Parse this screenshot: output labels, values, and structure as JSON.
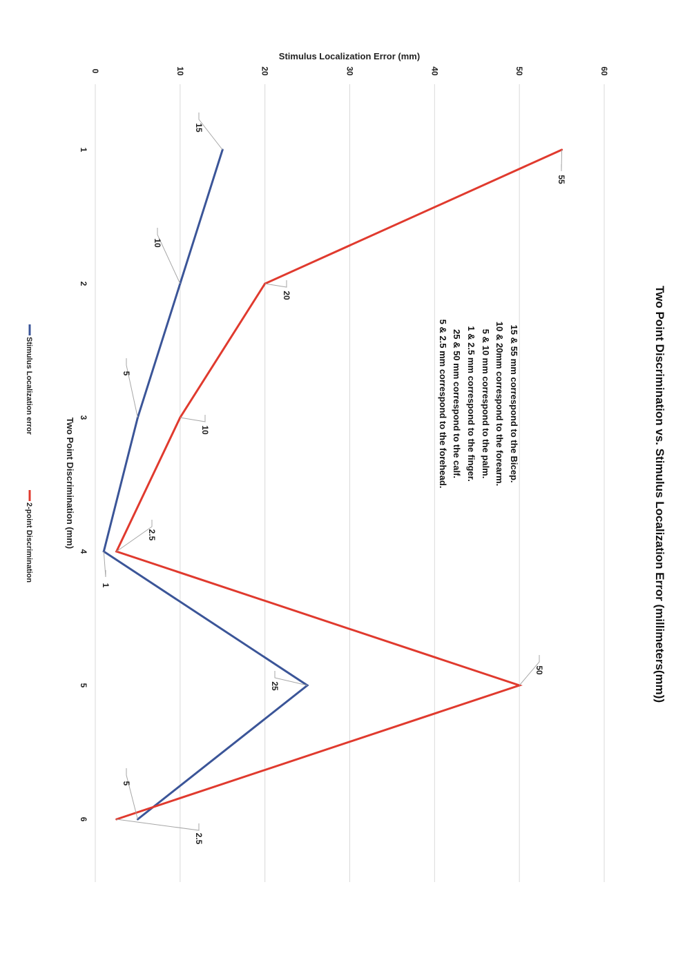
{
  "chart_data": {
    "type": "line",
    "orientation": "rotated 90deg clockwise",
    "title": "Two Point Discrimination vs. Stimulus Localization Error (millimeters(mm))",
    "xlabel": "Two Point Discrimination (mm)",
    "ylabel": "Stimulus Localization Error (mm)",
    "categories": [
      "1",
      "2",
      "3",
      "4",
      "5",
      "6"
    ],
    "y_ticks": [
      "0",
      "10",
      "20",
      "30",
      "40",
      "50",
      "60"
    ],
    "ylim": [
      0,
      60
    ],
    "grid": true,
    "legend_position": "bottom",
    "series": [
      {
        "name": "Stimulus Localization error",
        "color": "#3b5598",
        "values": [
          15,
          10,
          5,
          1,
          25,
          5
        ],
        "labels": [
          "15",
          "10",
          "5",
          "1",
          "25",
          "5"
        ]
      },
      {
        "name": "2-point Discrimination",
        "color": "#e03a2e",
        "values": [
          55,
          20,
          10,
          2.5,
          50,
          2.5
        ],
        "labels": [
          "55",
          "20",
          "10",
          "2.5",
          "50",
          "2.5"
        ]
      }
    ],
    "annotations": [
      "15  & 55 mm correspond to the Bicep.",
      "10 & 20mm correspond to the forearm.",
      "5 & 10 mm correspond to the palm.",
      "1 & 2.5 mm correspond to the finger.",
      "25 & 50 mm correspond to the calf.",
      "5 & 2.5 mm correspond to the forehead."
    ]
  }
}
